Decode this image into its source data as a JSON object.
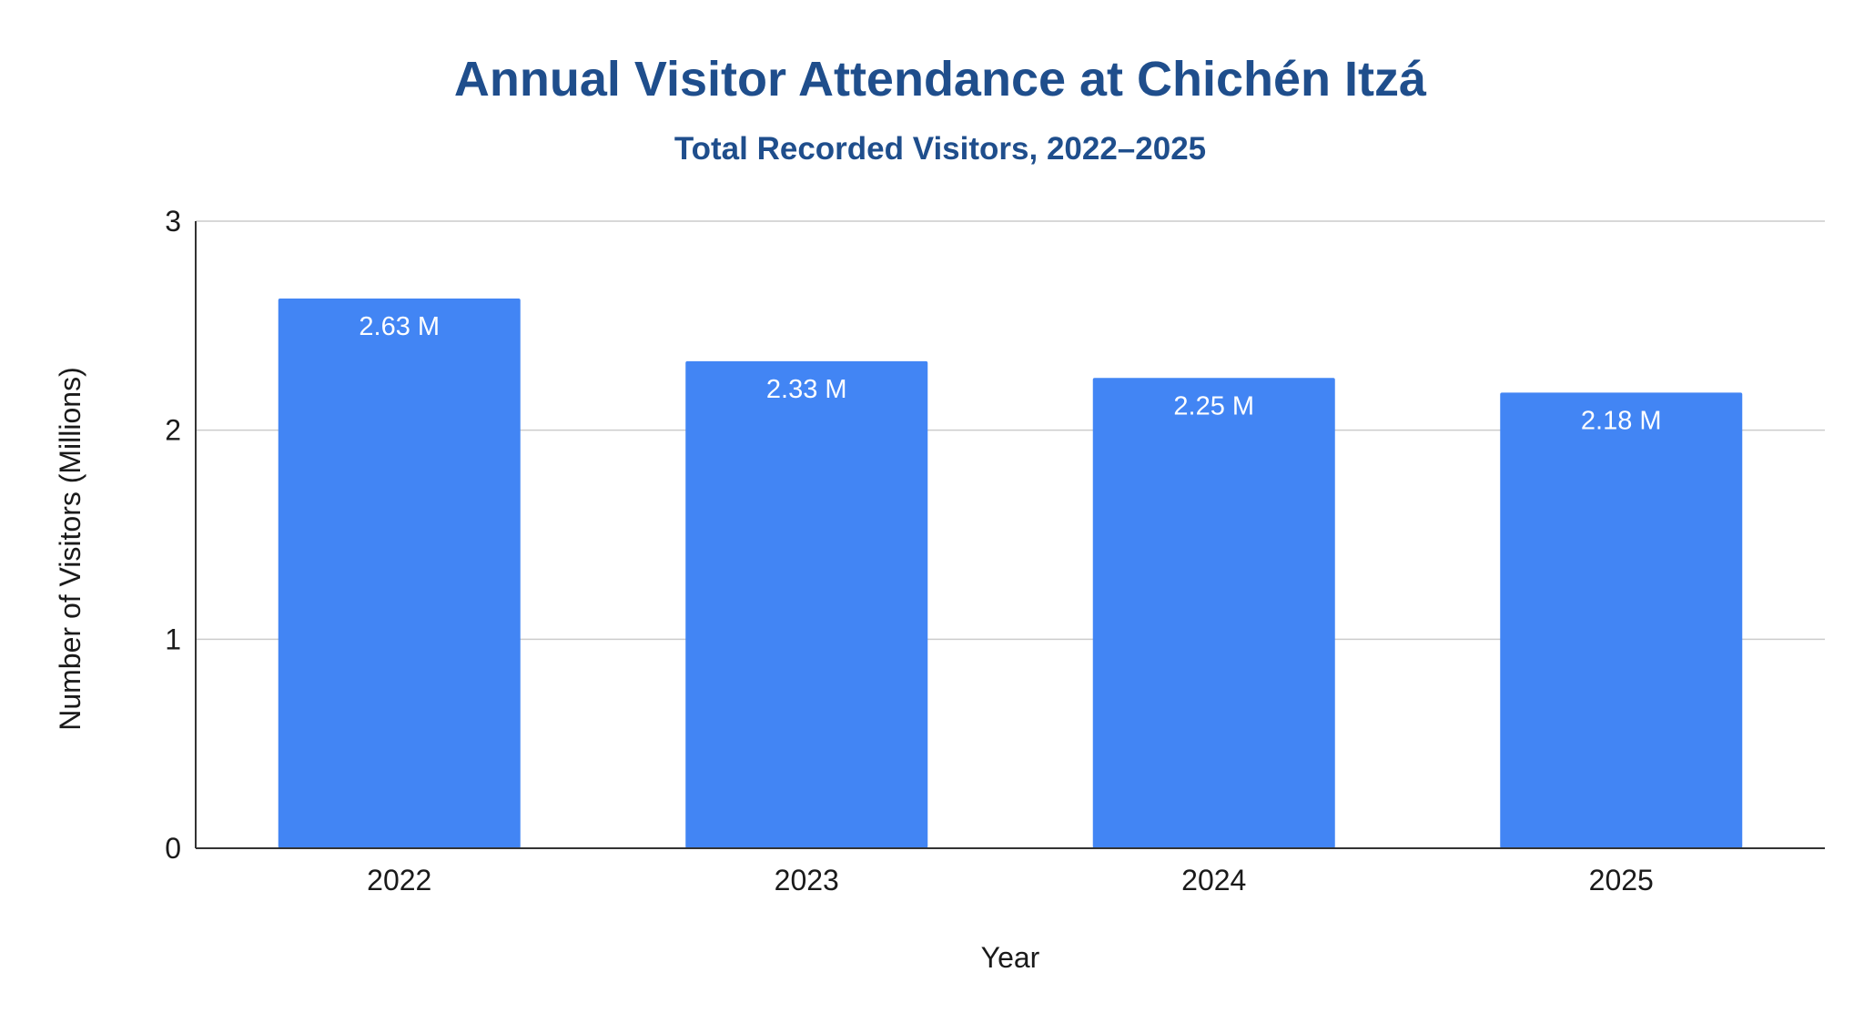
{
  "colors": {
    "title": "#1f4e8c",
    "bar": "#4285f4",
    "data_label": "#ffffff",
    "grid": "#cccccc",
    "axis": "#333333",
    "text": "#1a1a1a"
  },
  "chart_data": {
    "type": "bar",
    "title": "Annual Visitor Attendance at Chichén Itzá",
    "subtitle": "Total Recorded Visitors, 2022–2025",
    "xlabel": "Year",
    "ylabel": "Number of Visitors (Millions)",
    "categories": [
      "2022",
      "2023",
      "2024",
      "2025"
    ],
    "values": [
      2.63,
      2.33,
      2.25,
      2.18
    ],
    "data_labels": [
      "2.63 M",
      "2.33 M",
      "2.25 M",
      "2.18 M"
    ],
    "ylim": [
      0,
      3
    ],
    "yticks": [
      0,
      1,
      2,
      3
    ],
    "grid": true,
    "legend": "none"
  }
}
